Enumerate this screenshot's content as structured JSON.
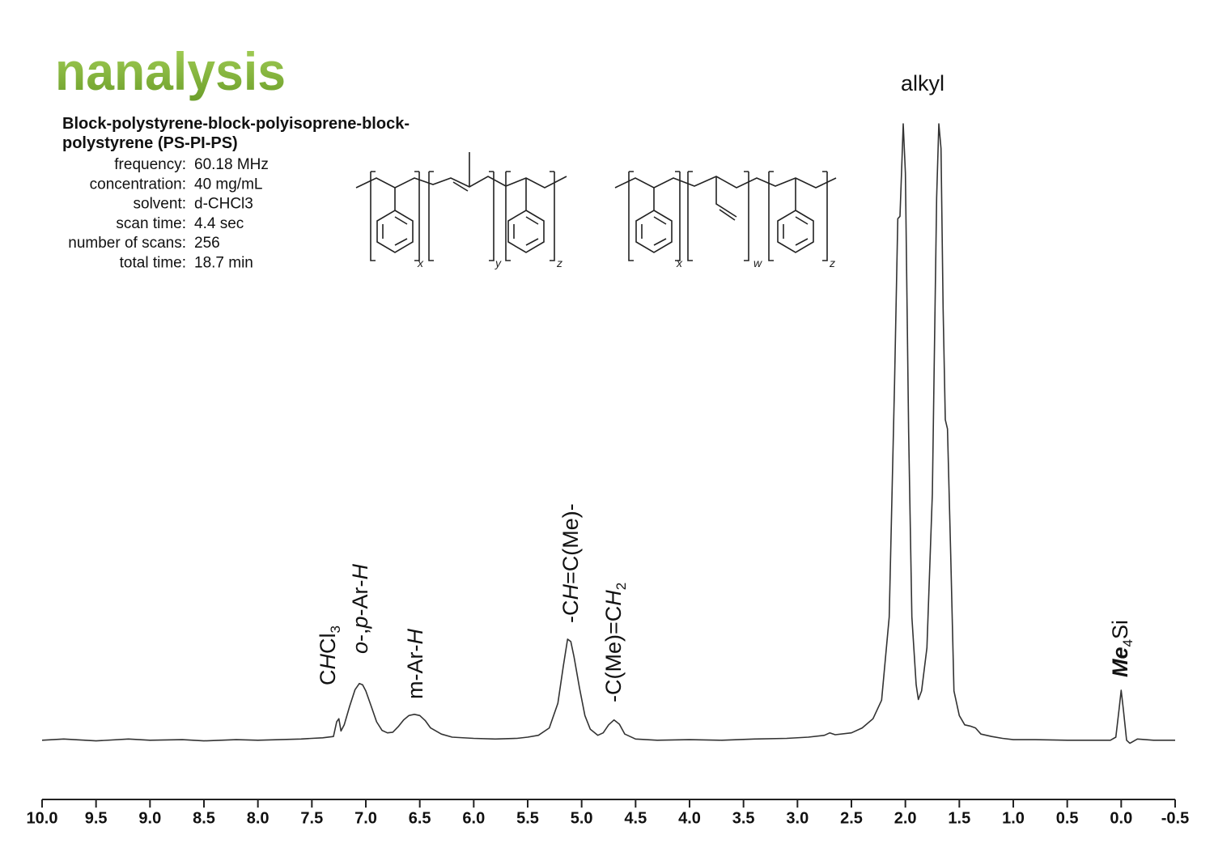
{
  "logo": "nanalysis",
  "sample_title": [
    "Block-polystyrene-block-polyisoprene-block-",
    "polystyrene (PS-PI-PS)"
  ],
  "parameters": [
    [
      "frequency:",
      "60.18 MHz"
    ],
    [
      "concentration:",
      "40 mg/mL"
    ],
    [
      "solvent:",
      "d-CHCl3"
    ],
    [
      "scan time:",
      "4.4 sec"
    ],
    [
      "number of scans:",
      "256"
    ],
    [
      "total time:",
      "18.7 min"
    ]
  ],
  "structures": [
    {
      "subscripts": [
        "x",
        "y",
        "z"
      ]
    },
    {
      "subscripts": [
        "x",
        "w",
        "z"
      ]
    }
  ],
  "chart_data": {
    "type": "line",
    "color": "#333333",
    "annotations": [
      [
        "C",
        "H",
        "Cl",
        "3"
      ],
      [
        "o",
        "-,",
        "p",
        "-Ar-",
        "H"
      ],
      [
        "m-Ar-",
        "H"
      ],
      [
        "-C",
        "H",
        "=C(Me)-"
      ],
      [
        "-C(Me)=C",
        "H",
        "2"
      ],
      [
        "Me",
        "4",
        "Si"
      ],
      [
        "alkyl"
      ]
    ],
    "xlim": [
      10,
      -0.5
    ],
    "ylim": [
      -10,
      100
    ],
    "xticks": [
      {
        "value": 10,
        "label": "10.0"
      },
      9.5,
      {
        "value": 9,
        "label": "9.0"
      },
      8.5,
      {
        "value": 8,
        "label": "8.0"
      },
      7.5,
      {
        "value": 7,
        "label": "7.0"
      },
      6.5,
      {
        "value": 6,
        "label": "6.0"
      },
      5.5,
      {
        "value": 5,
        "label": "5.0"
      },
      4.5,
      {
        "value": 4,
        "label": "4.0"
      },
      3.5,
      {
        "value": 3,
        "label": "3.0"
      },
      2.5,
      {
        "value": 2,
        "label": "2.0"
      },
      1.5,
      {
        "value": 1,
        "label": "1.0"
      },
      0.5,
      {
        "value": 0,
        "label": "0.0"
      },
      -0.5
    ],
    "x": [
      10.0,
      9.8,
      9.5,
      9.2,
      9.0,
      8.7,
      8.5,
      8.2,
      8.0,
      7.8,
      7.6,
      7.5,
      7.4,
      7.3,
      7.27,
      7.25,
      7.23,
      7.2,
      7.15,
      7.1,
      7.06,
      7.03,
      7.0,
      6.95,
      6.9,
      6.85,
      6.8,
      6.75,
      6.7,
      6.65,
      6.6,
      6.55,
      6.5,
      6.45,
      6.4,
      6.3,
      6.2,
      6.0,
      5.8,
      5.6,
      5.5,
      5.4,
      5.3,
      5.22,
      5.17,
      5.13,
      5.1,
      5.07,
      5.02,
      4.97,
      4.92,
      4.85,
      4.8,
      4.75,
      4.7,
      4.65,
      4.6,
      4.5,
      4.3,
      4.0,
      3.7,
      3.4,
      3.1,
      2.9,
      2.75,
      2.7,
      2.65,
      2.5,
      2.4,
      2.3,
      2.22,
      2.15,
      2.1,
      2.07,
      2.05,
      2.03,
      2.02,
      2.0,
      1.97,
      1.94,
      1.9,
      1.88,
      1.85,
      1.8,
      1.75,
      1.71,
      1.69,
      1.67,
      1.65,
      1.63,
      1.61,
      1.58,
      1.55,
      1.5,
      1.45,
      1.4,
      1.35,
      1.3,
      1.2,
      1.1,
      1.0,
      0.8,
      0.5,
      0.3,
      0.1,
      0.05,
      0.02,
      0.0,
      -0.02,
      -0.05,
      -0.08,
      -0.15,
      -0.3,
      -0.5
    ],
    "values": [
      0,
      0.2,
      -0.1,
      0.2,
      0,
      0.1,
      -0.1,
      0.1,
      0,
      0.1,
      0.2,
      0.3,
      0.4,
      0.6,
      3.0,
      3.5,
      1.5,
      2.5,
      5.5,
      8.2,
      9.2,
      9.0,
      8.0,
      5.5,
      3.0,
      1.6,
      1.2,
      1.3,
      2.2,
      3.3,
      4.0,
      4.2,
      4.0,
      3.2,
      2.0,
      1.0,
      0.5,
      0.3,
      0.2,
      0.3,
      0.5,
      0.8,
      2.0,
      6.0,
      12.0,
      16.4,
      16.0,
      13.5,
      8.5,
      4.0,
      1.8,
      0.8,
      1.2,
      2.5,
      3.3,
      2.6,
      1.0,
      0.2,
      0,
      0.1,
      0,
      0.2,
      0.3,
      0.5,
      0.8,
      1.2,
      0.9,
      1.2,
      2.0,
      3.5,
      6.5,
      20.0,
      58.0,
      84.6,
      85.0,
      95.0,
      100,
      92.0,
      50.0,
      20.0,
      9.0,
      6.6,
      8.0,
      15.0,
      40.0,
      88.0,
      100,
      96.0,
      70.0,
      52.0,
      50.5,
      30.0,
      8.0,
      4.0,
      2.5,
      2.3,
      2.0,
      1.0,
      0.6,
      0.3,
      0.1,
      0.1,
      0,
      0,
      0,
      0.5,
      5.0,
      8.1,
      5.0,
      0,
      -0.5,
      0.2,
      0,
      0
    ]
  }
}
